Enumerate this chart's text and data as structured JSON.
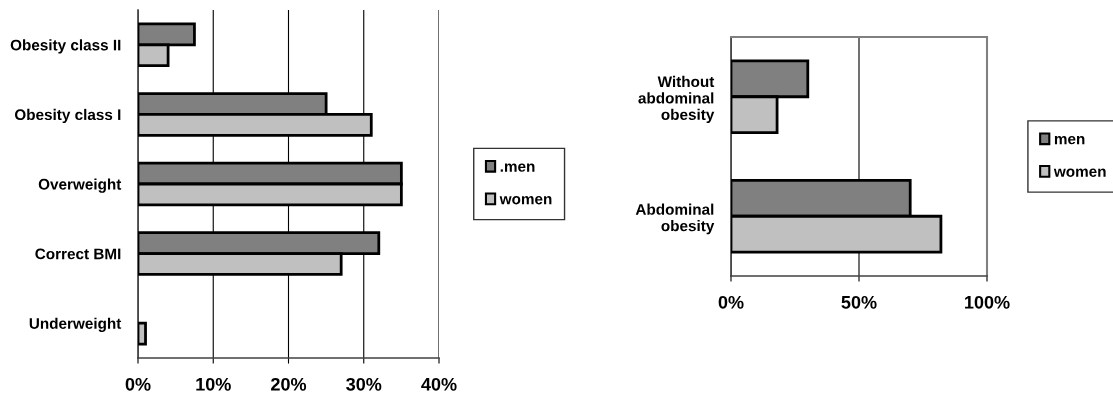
{
  "chart_data": [
    {
      "type": "bar",
      "orientation": "horizontal",
      "categories": [
        "Obesity class II",
        "Obesity class I",
        "Overweight",
        "Correct BMI",
        "Underweight"
      ],
      "series": [
        {
          "name": ".men",
          "color": "#808080",
          "values": [
            7.5,
            25,
            35,
            32,
            null
          ]
        },
        {
          "name": "women",
          "color": "#c0c0c0",
          "values": [
            4,
            31,
            35,
            27,
            1
          ]
        }
      ],
      "xlim": [
        0,
        40
      ],
      "xticks": [
        {
          "value": 0,
          "label": "0%"
        },
        {
          "value": 10,
          "label": "10%"
        },
        {
          "value": 20,
          "label": "20%"
        },
        {
          "value": 30,
          "label": "30%"
        },
        {
          "value": 40,
          "label": "40%"
        }
      ],
      "grid": "x",
      "legend": "right"
    },
    {
      "type": "bar",
      "orientation": "horizontal",
      "categories": [
        "Without\nabdominal\nobesity",
        "Abdominal\nobesity"
      ],
      "series": [
        {
          "name": "men",
          "color": "#808080",
          "values": [
            30,
            70
          ]
        },
        {
          "name": "women",
          "color": "#c0c0c0",
          "values": [
            18,
            82
          ]
        }
      ],
      "xlim": [
        0,
        100
      ],
      "xticks": [
        {
          "value": 0,
          "label": "0%"
        },
        {
          "value": 50,
          "label": "50%"
        },
        {
          "value": 100,
          "label": "100%"
        }
      ],
      "grid": "x",
      "legend": "right"
    }
  ]
}
